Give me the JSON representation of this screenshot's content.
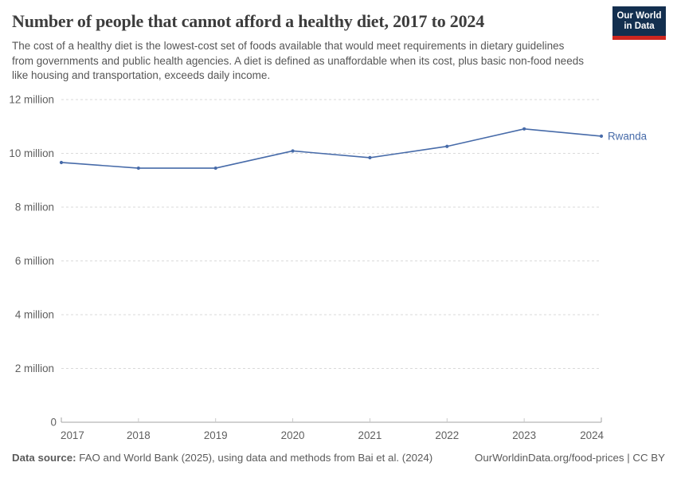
{
  "header": {
    "title": "Number of people that cannot afford a healthy diet, 2017 to 2024",
    "subtitle": "The cost of a healthy diet is the lowest-cost set of foods available that would meet requirements in dietary guidelines from governments and public health agencies. A diet is defined as unaffordable when its cost, plus basic non-food needs like housing and transportation, exceeds daily income.",
    "logo": {
      "line1": "Our World",
      "line2": "in Data",
      "bg_color": "#132f4f",
      "bar_color": "#ce261f",
      "text_color": "#ffffff"
    }
  },
  "chart_data": {
    "type": "line",
    "title": "Number of people that cannot afford a healthy diet, 2017 to 2024",
    "x": [
      2017,
      2018,
      2019,
      2020,
      2021,
      2022,
      2023,
      2024
    ],
    "x_tick_labels": [
      "2017",
      "2018",
      "2019",
      "2020",
      "2021",
      "2022",
      "2023",
      "2024"
    ],
    "series": [
      {
        "name": "Rwanda",
        "values_millions": [
          9.66,
          9.45,
          9.45,
          10.09,
          9.84,
          10.26,
          10.91,
          10.64
        ],
        "color": "#476ba9"
      }
    ],
    "xlabel": "",
    "ylabel": "",
    "unit": "people",
    "ylim_millions": [
      0,
      12
    ],
    "y_ticks": [
      {
        "value_millions": 0,
        "label": "0"
      },
      {
        "value_millions": 2,
        "label": "2 million"
      },
      {
        "value_millions": 4,
        "label": "4 million"
      },
      {
        "value_millions": 6,
        "label": "6 million"
      },
      {
        "value_millions": 8,
        "label": "8 million"
      },
      {
        "value_millions": 10,
        "label": "10 million"
      },
      {
        "value_millions": 12,
        "label": "12 million"
      }
    ],
    "grid": "horizontal-dashed",
    "legend": "end-of-line-label",
    "colors": {
      "grid_line": "#dadada",
      "axis_line": "#a3a3a3",
      "tick_text": "#5f5f5f"
    }
  },
  "footer": {
    "source_label": "Data source:",
    "source_text": " FAO and World Bank (2025), using data and methods from Bai et al. (2024)",
    "link_text": "OurWorldinData.org/food-prices | CC BY"
  }
}
